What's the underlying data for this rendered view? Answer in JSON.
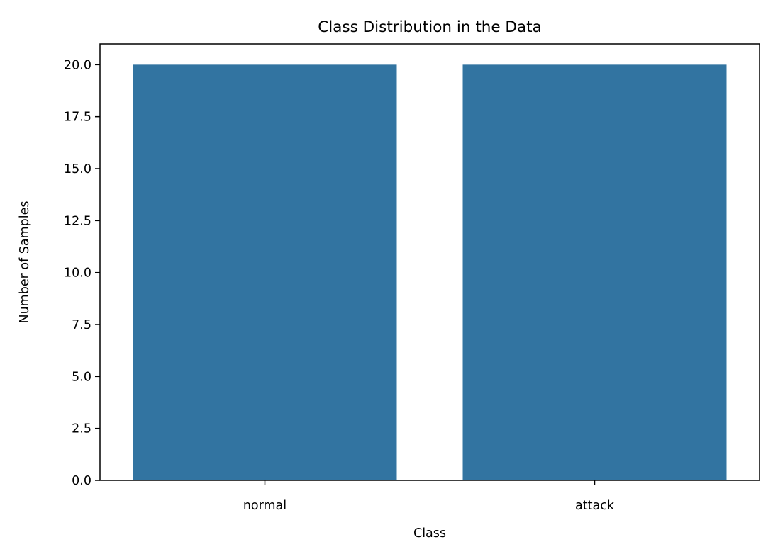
{
  "chart_data": {
    "type": "bar",
    "title": "Class Distribution in the Data",
    "xlabel": "Class",
    "ylabel": "Number of Samples",
    "categories": [
      "normal",
      "attack"
    ],
    "values": [
      20,
      20
    ],
    "ylim": [
      0,
      21
    ],
    "yticks": [
      0.0,
      2.5,
      5.0,
      7.5,
      10.0,
      12.5,
      15.0,
      17.5,
      20.0
    ],
    "ytick_labels": [
      "0.0",
      "2.5",
      "5.0",
      "7.5",
      "10.0",
      "12.5",
      "15.0",
      "17.5",
      "20.0"
    ],
    "bar_color": "#3274a1",
    "grid": false,
    "legend": "none"
  }
}
